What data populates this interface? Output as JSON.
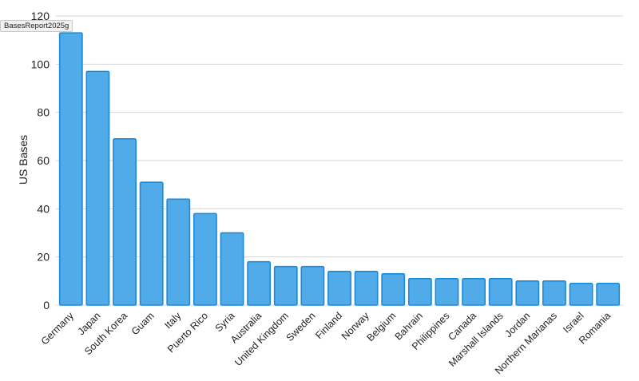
{
  "source_tag": "BasesReport2025g",
  "chart_data": {
    "type": "bar",
    "categories": [
      "Germany",
      "Japan",
      "South Korea",
      "Guam",
      "Italy",
      "Puerto Rico",
      "Syria",
      "Australia",
      "United Kingdom",
      "Sweden",
      "Finland",
      "Norway",
      "Belgium",
      "Bahrain",
      "Philippines",
      "Canada",
      "Marshall Islands",
      "Jordan",
      "Northern Marianas",
      "Israel",
      "Romania"
    ],
    "values": [
      113,
      97,
      69,
      51,
      44,
      38,
      30,
      18,
      16,
      16,
      14,
      14,
      13,
      11,
      11,
      11,
      11,
      10,
      10,
      9,
      9
    ],
    "xlabel": "",
    "ylabel": "US Bases",
    "ylim": [
      0,
      120
    ],
    "yticks": [
      0,
      20,
      40,
      60,
      80,
      100,
      120
    ],
    "grid": true,
    "legend": "none",
    "colors": {
      "bar_fill": "#52abe9",
      "bar_stroke": "#1b8ad8",
      "grid": "#d6d6d6"
    }
  }
}
